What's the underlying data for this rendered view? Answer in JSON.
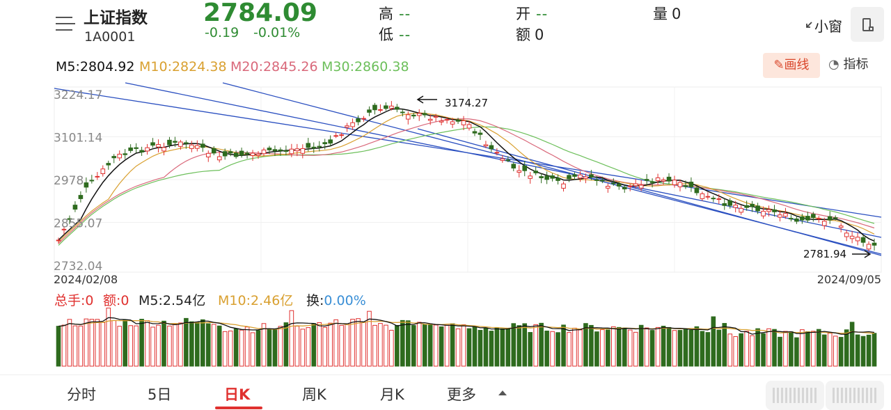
{
  "header": {
    "name": "上证指数",
    "code": "1A0001",
    "price": "2784.09",
    "change": "-0.19",
    "change_pct": "-0.01%",
    "high_label": "高",
    "high_value": "--",
    "low_label": "低",
    "low_value": "--",
    "open_label": "开",
    "open_value": "--",
    "amount_label": "额",
    "amount_value": "0",
    "volume_label": "量",
    "volume_value": "0",
    "mini_window": "小窗"
  },
  "ma_legend": {
    "m5": "M5:2804.92",
    "m10": "M10:2824.38",
    "m20": "M20:2845.26",
    "m30": "M30:2860.38"
  },
  "toolbar": {
    "draw_label": "画线",
    "indicator_label": "指标"
  },
  "colors": {
    "up": "#e0312f",
    "down": "#2e6b1e",
    "price_down": "#2e8b32",
    "m5": "#111111",
    "m10": "#d9a030",
    "m20": "#d9687a",
    "m30": "#6cbf5a",
    "trendline": "#2a4fc0",
    "volume_pct": "#3a8fd6"
  },
  "chart_data": {
    "type": "candlestick",
    "start_date": "2024/02/08",
    "end_date": "2024/09/05",
    "y_ticks": [
      "3224.17",
      "3101.14",
      "2978",
      "2855.07",
      "2732.04"
    ],
    "ylim": [
      2732.04,
      3224.17
    ],
    "annotations": {
      "high_label": "3174.27",
      "low_label": "2781.94"
    },
    "grid": true
  },
  "volume": {
    "total_hands": "总手:0",
    "amount": "额:0",
    "m5": "M5:2.54亿",
    "m10": "M10:2.46亿",
    "turnover_label": "换:",
    "turnover_value": "0.00%"
  },
  "tabs": [
    {
      "label": "分时"
    },
    {
      "label": "5日"
    },
    {
      "label": "日K"
    },
    {
      "label": "周K"
    },
    {
      "label": "月K"
    },
    {
      "label": "更多"
    }
  ]
}
